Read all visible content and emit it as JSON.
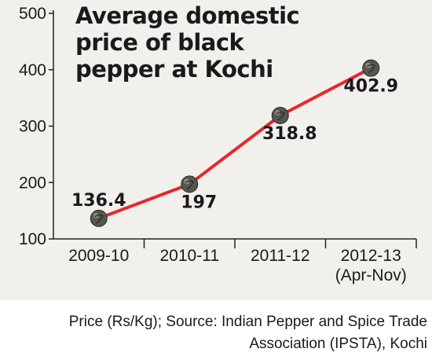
{
  "chart_data": {
    "type": "line",
    "title_lines": [
      "Average domestic",
      "price of black",
      "pepper at Kochi"
    ],
    "categories": [
      "2009-10",
      "2010-11",
      "2011-12",
      "2012-13"
    ],
    "category_sublabels": [
      "",
      "",
      "",
      "(Apr-Nov)"
    ],
    "values": [
      136.4,
      197,
      318.8,
      402.9
    ],
    "data_labels": [
      "136.4",
      "197",
      "318.8",
      "402.9"
    ],
    "yticks": [
      100,
      200,
      300,
      400,
      500
    ],
    "ylim": [
      100,
      500
    ],
    "grid": false,
    "line_color": "#e8262d",
    "marker": "pepper-icon"
  },
  "footer": {
    "source_lines": [
      "Price (Rs/Kg); Source: Indian Pepper and Spice Trade",
      "Association (IPSTA), Kochi"
    ]
  }
}
